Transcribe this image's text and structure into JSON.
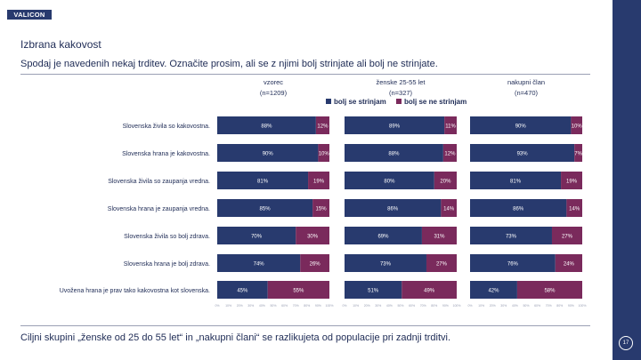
{
  "logo": "VALICON",
  "title": "Izbrana kakovost",
  "subtitle": "Spodaj je navedenih nekaj trditev. Označite prosim, ali se z njimi bolj strinjate ali bolj ne strinjate.",
  "footer": "Ciljni skupini „ženske od 25 do 55 let“ in „nakupni člani“ se razlikujeta od populacije pri zadnji trditvi.",
  "page_number": "17",
  "colors": {
    "agree": "#283a6e",
    "disagree": "#7a2a5c",
    "text": "#1e2b55"
  },
  "chart_data": {
    "type": "bar",
    "orientation": "horizontal",
    "stacked": true,
    "categories": [
      "Slovenska živila so kakovostna.",
      "Slovenska hrana je kakovostna.",
      "Slovenska živila so zaupanja vredna.",
      "Slovenska hrana je zaupanja vredna.",
      "Slovenska živila so bolj zdrava.",
      "Slovenska hrana je bolj zdrava.",
      "Uvožena hrana je prav tako kakovostna kot slovenska."
    ],
    "legend": {
      "entries": [
        "bolj se strinjam",
        "bolj se ne strinjam"
      ],
      "placement": "top"
    },
    "xlim": [
      0,
      100
    ],
    "ticks": [
      "0%",
      "10%",
      "20%",
      "30%",
      "40%",
      "50%",
      "60%",
      "70%",
      "80%",
      "90%",
      "100%"
    ],
    "panels": [
      {
        "name": "vzorec",
        "n": "(n=1209)",
        "series": [
          {
            "name": "bolj se strinjam",
            "values": [
              88,
              90,
              81,
              85,
              70,
              74,
              45
            ]
          },
          {
            "name": "bolj se ne strinjam",
            "values": [
              12,
              10,
              19,
              15,
              30,
              26,
              55
            ]
          }
        ],
        "labels": [
          [
            "88%",
            "90%",
            "81%",
            "85%",
            "70%",
            "74%",
            "45%"
          ],
          [
            "12%",
            "10%",
            "19%",
            "15%",
            "30%",
            "26%",
            "55%"
          ]
        ]
      },
      {
        "name": "ženske 25-55 let",
        "n": "(n=327)",
        "series": [
          {
            "name": "bolj se strinjam",
            "values": [
              89,
              88,
              80,
              86,
              69,
              73,
              51
            ]
          },
          {
            "name": "bolj se ne strinjam",
            "values": [
              11,
              12,
              20,
              14,
              31,
              27,
              49
            ]
          }
        ],
        "labels": [
          [
            "89%",
            "88%",
            "80%",
            "86%",
            "69%",
            "73%",
            "51%"
          ],
          [
            "11%",
            "12%",
            "20%",
            "14%",
            "31%",
            "27%",
            "49%"
          ]
        ]
      },
      {
        "name": "nakupni član",
        "n": "(n=470)",
        "series": [
          {
            "name": "bolj se strinjam",
            "values": [
              90,
              93,
              81,
              86,
              73,
              76,
              42
            ]
          },
          {
            "name": "bolj se ne strinjam",
            "values": [
              10,
              7,
              19,
              14,
              27,
              24,
              58
            ]
          }
        ],
        "labels": [
          [
            "90%",
            "93%",
            "81%",
            "86%",
            "73%",
            "76%",
            "42%"
          ],
          [
            "10%",
            "7%",
            "19%",
            "14%",
            "27%",
            "24%",
            "58%"
          ]
        ]
      }
    ]
  }
}
